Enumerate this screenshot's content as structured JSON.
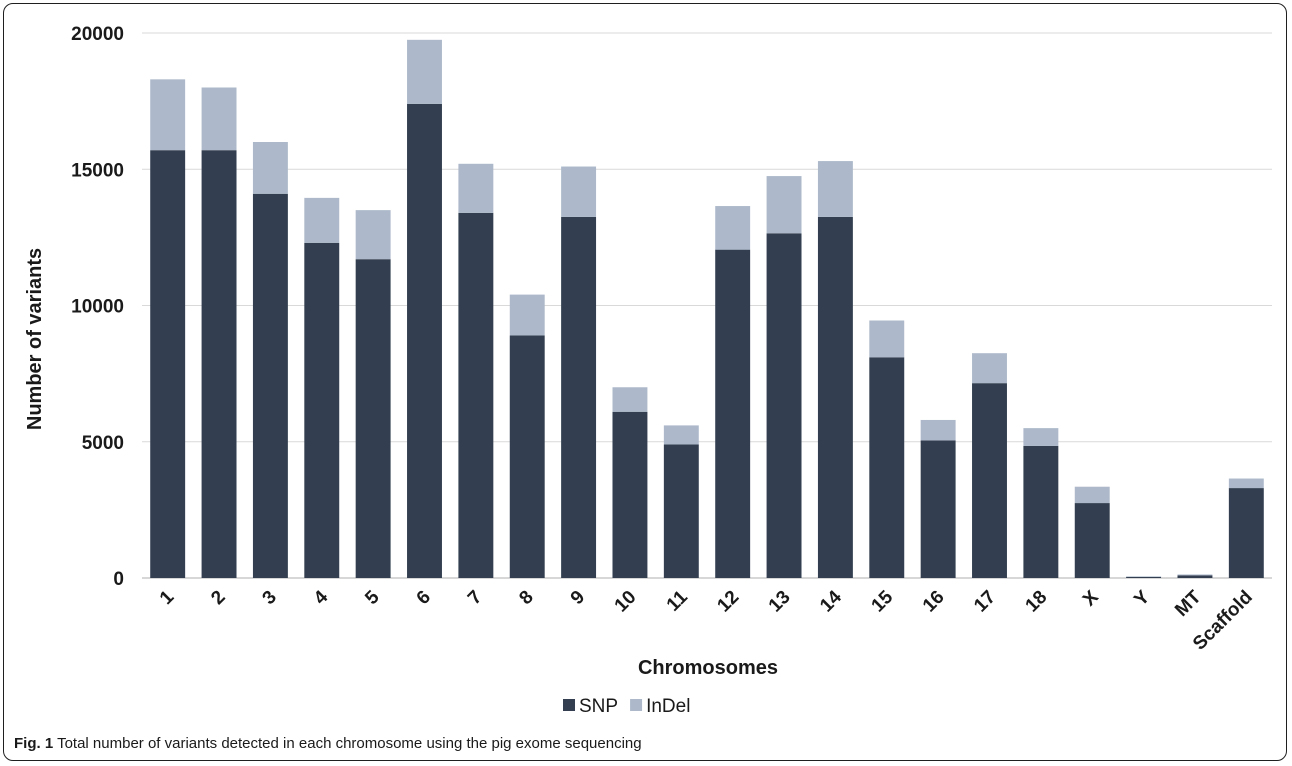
{
  "caption": {
    "label": "Fig. 1",
    "text": "Total number of variants detected in each chromosome using the pig exome sequencing"
  },
  "chart_data": {
    "type": "bar",
    "stacked": true,
    "categories": [
      "1",
      "2",
      "3",
      "4",
      "5",
      "6",
      "7",
      "8",
      "9",
      "10",
      "11",
      "12",
      "13",
      "14",
      "15",
      "16",
      "17",
      "18",
      "X",
      "Y",
      "MT",
      "Scaffold"
    ],
    "series": [
      {
        "name": "SNP",
        "color": "#333f50",
        "values": [
          15700,
          15700,
          14100,
          12300,
          11700,
          17400,
          13400,
          8900,
          13250,
          6100,
          4900,
          12050,
          12650,
          13250,
          8100,
          5050,
          7150,
          4850,
          2750,
          40,
          100,
          3300
        ]
      },
      {
        "name": "InDel",
        "color": "#adb9ca",
        "values": [
          2600,
          2300,
          1900,
          1650,
          1800,
          2350,
          1800,
          1500,
          1850,
          900,
          700,
          1600,
          2100,
          2050,
          1350,
          750,
          1100,
          650,
          600,
          20,
          30,
          350
        ]
      }
    ],
    "xlabel": "Chromosomes",
    "ylabel": "Number of variants",
    "ylim": [
      0,
      20000
    ],
    "yticks": [
      0,
      5000,
      10000,
      15000,
      20000
    ],
    "grid": true,
    "legend_position": "bottom"
  }
}
